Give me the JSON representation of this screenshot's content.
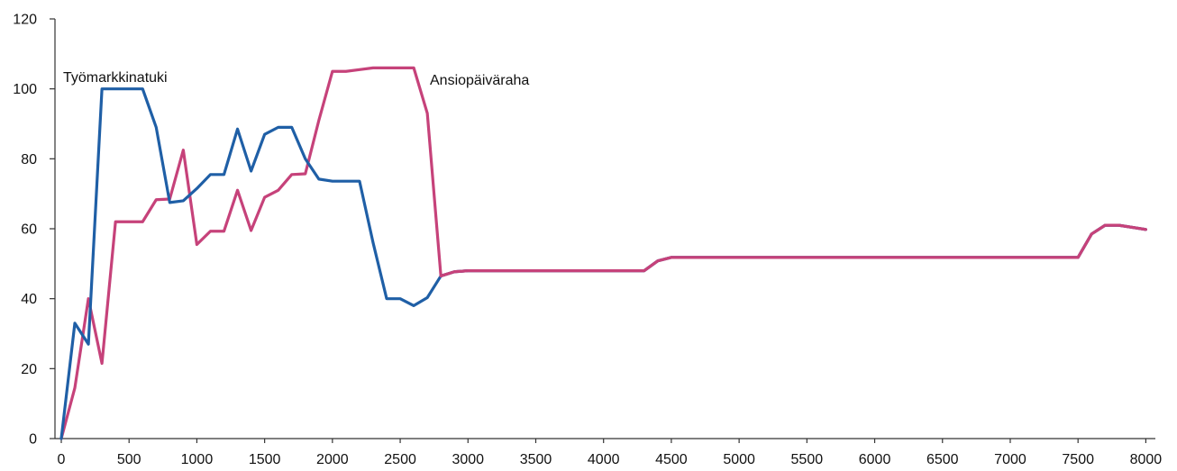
{
  "chart_data": {
    "type": "line",
    "title": "",
    "xlabel": "",
    "ylabel": "",
    "xlim": [
      0,
      8050
    ],
    "ylim": [
      0,
      120
    ],
    "grid": false,
    "legend": "none",
    "x_ticks": [
      "0",
      "500",
      "1000",
      "1500",
      "2000",
      "2500",
      "3000",
      "3500",
      "4000",
      "4500",
      "5000",
      "5500",
      "6000",
      "6500",
      "7000",
      "7500",
      "8000"
    ],
    "y_ticks": [
      "0",
      "20",
      "40",
      "60",
      "80",
      "100",
      "120"
    ],
    "series": [
      {
        "name": "Työmarkkinatuki",
        "color": "#1f5fa6",
        "points": [
          [
            0,
            0
          ],
          [
            100,
            33
          ],
          [
            200,
            27
          ],
          [
            300,
            100
          ],
          [
            400,
            100
          ],
          [
            500,
            100
          ],
          [
            600,
            100
          ],
          [
            700,
            89
          ],
          [
            800,
            67.5
          ],
          [
            900,
            68
          ],
          [
            1000,
            71.5
          ],
          [
            1100,
            75.5
          ],
          [
            1200,
            75.5
          ],
          [
            1300,
            88.5
          ],
          [
            1400,
            76.5
          ],
          [
            1500,
            87
          ],
          [
            1600,
            89
          ],
          [
            1700,
            89
          ],
          [
            1800,
            80
          ],
          [
            1900,
            74.2
          ],
          [
            2000,
            73.6
          ],
          [
            2100,
            73.6
          ],
          [
            2200,
            73.6
          ],
          [
            2300,
            56
          ],
          [
            2400,
            40
          ],
          [
            2500,
            40
          ],
          [
            2600,
            38
          ],
          [
            2700,
            40.3
          ],
          [
            2800,
            46.5
          ],
          [
            2900,
            47.7
          ],
          [
            3000,
            48
          ],
          [
            3500,
            48
          ],
          [
            4000,
            48
          ],
          [
            4300,
            48
          ],
          [
            4400,
            50.8
          ],
          [
            4500,
            51.8
          ],
          [
            5000,
            51.8
          ],
          [
            6000,
            51.8
          ],
          [
            7000,
            51.8
          ],
          [
            7500,
            51.8
          ],
          [
            7600,
            58.5
          ],
          [
            7700,
            61
          ],
          [
            7800,
            61
          ],
          [
            8000,
            59.8
          ]
        ]
      },
      {
        "name": "Ansiopäiväraha",
        "color": "#c6427a",
        "points": [
          [
            0,
            0
          ],
          [
            100,
            14.5
          ],
          [
            200,
            40
          ],
          [
            300,
            21.5
          ],
          [
            400,
            62
          ],
          [
            500,
            62
          ],
          [
            600,
            62
          ],
          [
            700,
            68.3
          ],
          [
            800,
            68.5
          ],
          [
            900,
            82.5
          ],
          [
            1000,
            55.5
          ],
          [
            1100,
            59.3
          ],
          [
            1200,
            59.3
          ],
          [
            1300,
            71
          ],
          [
            1400,
            59.5
          ],
          [
            1500,
            69
          ],
          [
            1600,
            71
          ],
          [
            1700,
            75.5
          ],
          [
            1800,
            75.7
          ],
          [
            1900,
            91
          ],
          [
            2000,
            105
          ],
          [
            2100,
            105
          ],
          [
            2200,
            105.5
          ],
          [
            2300,
            106
          ],
          [
            2400,
            106
          ],
          [
            2500,
            106
          ],
          [
            2600,
            106
          ],
          [
            2700,
            93
          ],
          [
            2800,
            46.5
          ],
          [
            2900,
            47.7
          ],
          [
            3000,
            48
          ],
          [
            3500,
            48
          ],
          [
            4000,
            48
          ],
          [
            4300,
            48
          ],
          [
            4400,
            50.8
          ],
          [
            4500,
            51.8
          ],
          [
            5000,
            51.8
          ],
          [
            6000,
            51.8
          ],
          [
            7000,
            51.8
          ],
          [
            7500,
            51.8
          ],
          [
            7600,
            58.5
          ],
          [
            7700,
            61
          ],
          [
            7800,
            61
          ],
          [
            8000,
            59.8
          ]
        ]
      }
    ],
    "annotations": [
      {
        "text": "Työmarkkinatuki",
        "series": "Työmarkkinatuki"
      },
      {
        "text": "Ansiopäiväraha",
        "series": "Ansiopäiväraha"
      }
    ]
  }
}
